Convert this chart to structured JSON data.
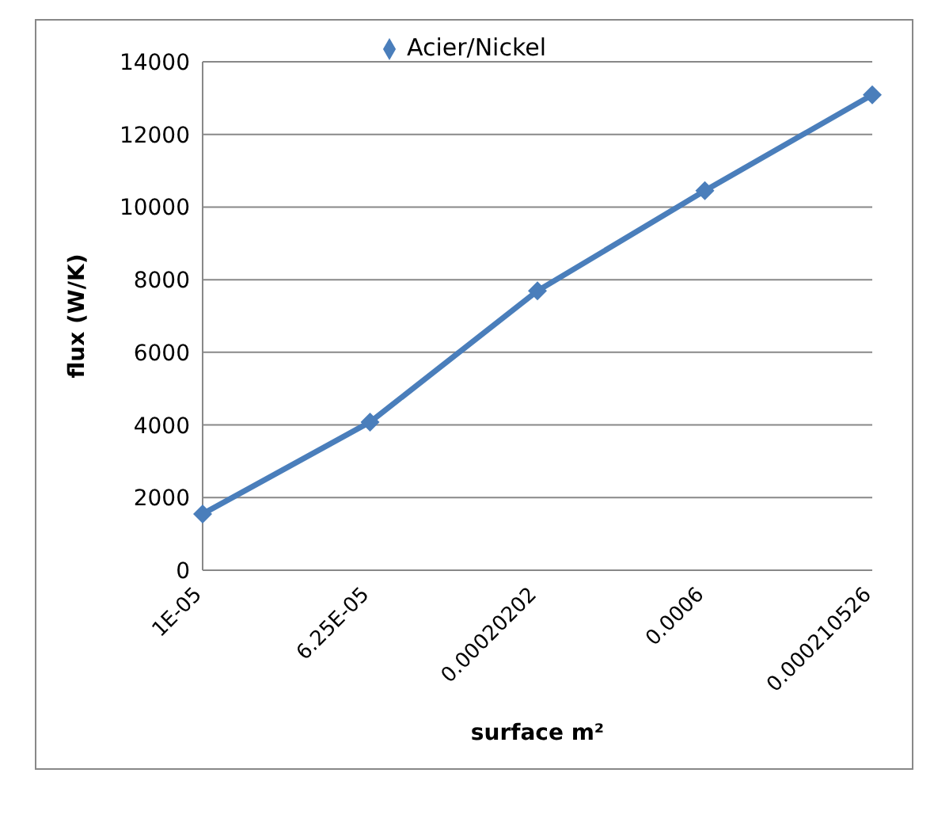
{
  "chart_data": {
    "type": "line",
    "xlabel": "surface m²",
    "ylabel": "flux (W/K)",
    "categories": [
      "1E-05",
      "6.25E-05",
      "0.00020202",
      "0.0006",
      "0.000210526"
    ],
    "series": [
      {
        "name": "Acier/Nickel",
        "color": "#4a7ebb",
        "values": [
          1550,
          4080,
          7690,
          10450,
          13090
        ]
      }
    ],
    "ylim": [
      0,
      14000
    ],
    "yticks": [
      0,
      2000,
      4000,
      6000,
      8000,
      10000,
      12000,
      14000
    ],
    "grid": "y",
    "legend": "top",
    "marker": "diamond",
    "line_style": "solid"
  }
}
